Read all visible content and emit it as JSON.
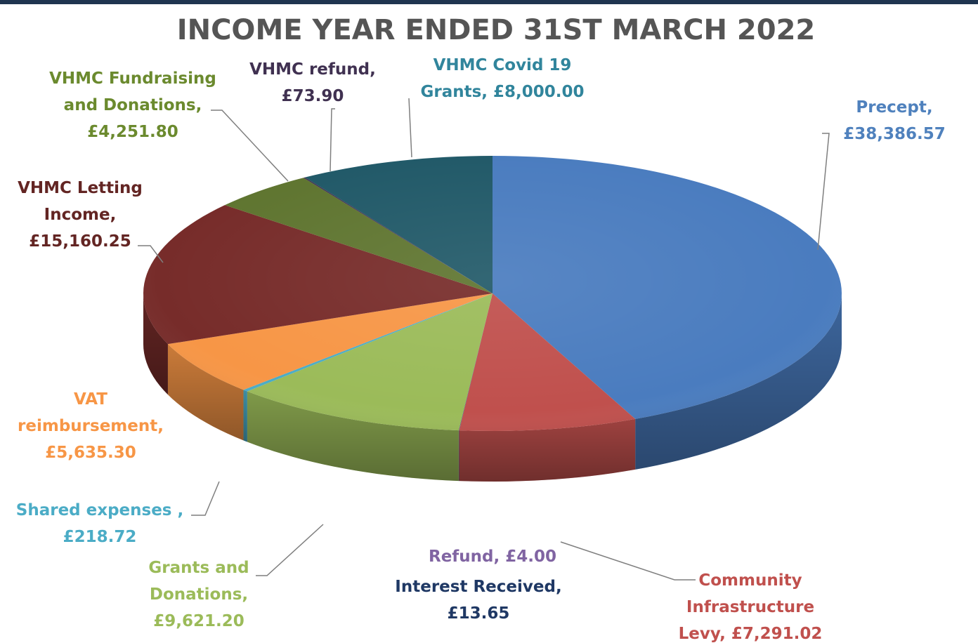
{
  "chart_data": {
    "type": "pie",
    "title": "INCOME YEAR ENDED 31ST MARCH 2022",
    "xlabel": "",
    "ylabel": "",
    "legend": "none",
    "slices": [
      {
        "name": "Precept",
        "value": 38386.57,
        "value_label": "£38,386.57",
        "color": "#4a7cbf",
        "label_lines": [
          "Precept,",
          "£38,386.57"
        ],
        "label_color": "#4f81bd"
      },
      {
        "name": "Community Infrastructure Levy",
        "value": 7291.02,
        "value_label": "£7,291.02",
        "color": "#c0504d",
        "label_lines": [
          "Community",
          "Infrastructure",
          "Levy,  £7,291.02"
        ],
        "label_color": "#c0504d"
      },
      {
        "name": "Refund",
        "value": 4.0,
        "value_label": "£4.00",
        "color": "#8064a2",
        "label_lines": [
          "Refund,  £4.00"
        ],
        "label_color": "#8064a2"
      },
      {
        "name": "Interest Received",
        "value": 13.65,
        "value_label": "£13.65",
        "color": "#1f3864",
        "label_lines": [
          "Interest Received,",
          "£13.65"
        ],
        "label_color": "#1f3864"
      },
      {
        "name": "Grants and Donations",
        "value": 9621.2,
        "value_label": "£9,621.20",
        "color": "#9bbb59",
        "label_lines": [
          "Grants and",
          "Donations,",
          "£9,621.20"
        ],
        "label_color": "#9bbb59"
      },
      {
        "name": "Shared expenses",
        "value": 218.72,
        "value_label": "£218.72",
        "color": "#4bacc6",
        "label_lines": [
          "Shared expenses ,",
          "£218.72"
        ],
        "label_color": "#4bacc6"
      },
      {
        "name": "VAT reimbursement",
        "value": 5635.3,
        "value_label": "£5,635.30",
        "color": "#f79646",
        "label_lines": [
          "VAT",
          "reimbursement,",
          "£5,635.30"
        ],
        "label_color": "#f79646"
      },
      {
        "name": "VHMC Letting Income",
        "value": 15160.25,
        "value_label": "£15,160.25",
        "color": "#772c2a",
        "label_lines": [
          "VHMC Letting",
          "Income,",
          "£15,160.25"
        ],
        "label_color": "#632523"
      },
      {
        "name": "VHMC Fundraising and Donations",
        "value": 4251.8,
        "value_label": "£4,251.80",
        "color": "#5f7530",
        "label_lines": [
          "VHMC Fundraising",
          "and Donations,",
          "£4,251.80"
        ],
        "label_color": "#6b8a2e"
      },
      {
        "name": "VHMC refund",
        "value": 73.9,
        "value_label": "£73.90",
        "color": "#3f3151",
        "label_lines": [
          "VHMC refund,",
          "£73.90"
        ],
        "label_color": "#403151"
      },
      {
        "name": "VHMC Covid 19 Grants",
        "value": 8000.0,
        "value_label": "£8,000.00",
        "color": "#215968",
        "label_lines": [
          "VHMC Covid 19",
          "Grants,  £8,000.00"
        ],
        "label_color": "#31859c"
      }
    ]
  }
}
